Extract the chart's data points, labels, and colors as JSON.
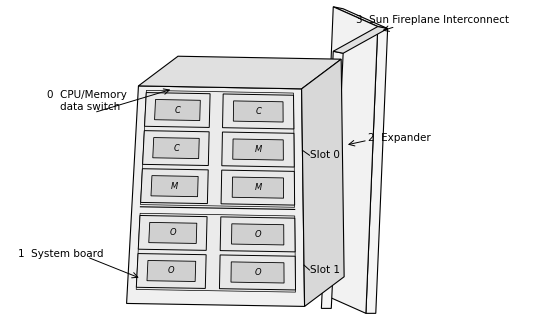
{
  "background_color": "#ffffff",
  "labels": {
    "fireplane": "3  Sun Fireplane Interconnect",
    "expander": "2  Expander",
    "cpu_memory": "0  CPU/Memory\n    data switch",
    "system_board": "1  System board",
    "slot0": "Slot 0",
    "slot1": "Slot 1"
  },
  "label_fontsize": 7.5,
  "line_color": "#000000",
  "board_face": "#f0f0f0",
  "board_top": "#e0e0e0",
  "board_right": "#d8d8d8",
  "card_face": "#e8e8e8",
  "chip_face": "#d0d0d0",
  "fp_face": "#f5f5f5",
  "fp_side": "#e0e0e0"
}
